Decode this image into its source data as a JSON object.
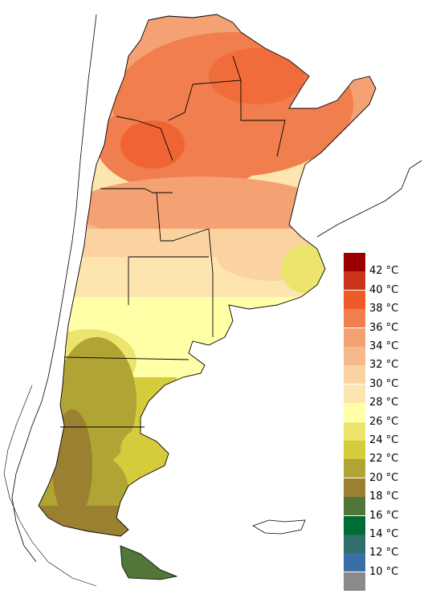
{
  "legend": {
    "colors": [
      "#990000",
      "#c8351a",
      "#f05a28",
      "#f07e4e",
      "#f4a174",
      "#f7b88b",
      "#fbd3a1",
      "#fde5b0",
      "#ffffa8",
      "#ece46c",
      "#d4cc3a",
      "#b0a434",
      "#9c8032",
      "#527538",
      "#006d34",
      "#2f6e6a",
      "#3a6ea8",
      "#8a8a8a"
    ],
    "labels": [
      "42 °C",
      "40 °C",
      "38 °C",
      "36 °C",
      "34 °C",
      "32 °C",
      "30 °C",
      "28 °C",
      "26 °C",
      "24 °C",
      "22 °C",
      "20 °C",
      "18 °C",
      "16 °C",
      "14 °C",
      "12 °C",
      "10 °C"
    ]
  }
}
